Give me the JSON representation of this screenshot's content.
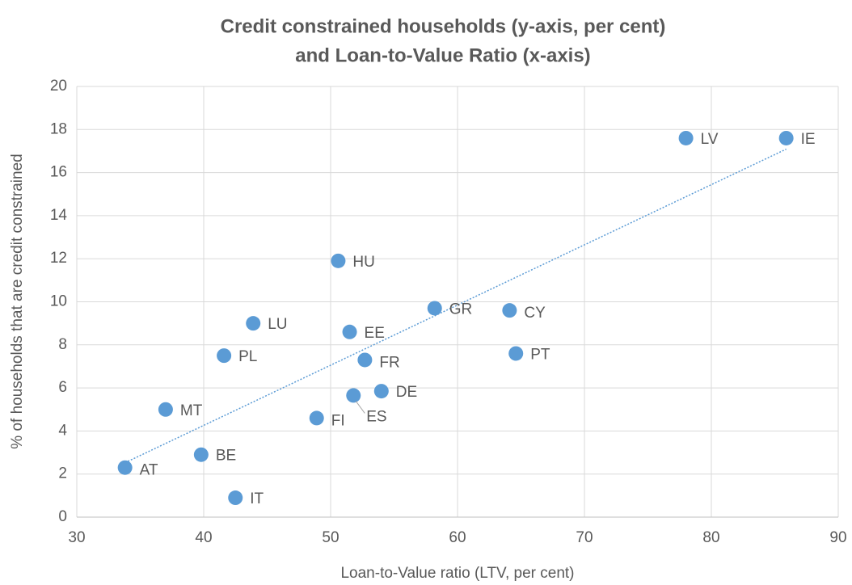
{
  "chart_data": {
    "type": "scatter",
    "title_lines": [
      "Credit constrained households (y-axis, per cent)",
      "and Loan-to-Value Ratio (x-axis)"
    ],
    "x_label": "Loan-to-Value ratio (LTV, per cent)",
    "y_label": "% of households that are credit constrained",
    "point_labels": [
      "LV",
      "IE",
      "HU",
      "GR",
      "CY",
      "LU",
      "EE",
      "PL",
      "PT",
      "FR",
      "DE",
      "ES",
      "MT",
      "FI",
      "BE",
      "AT",
      "IT"
    ],
    "x": [
      78.0,
      85.9,
      50.6,
      58.2,
      64.1,
      43.9,
      51.5,
      41.6,
      64.6,
      52.7,
      54.0,
      51.8,
      37.0,
      48.9,
      39.8,
      33.8,
      42.5
    ],
    "values": [
      17.6,
      17.6,
      11.9,
      9.7,
      9.6,
      9.0,
      8.6,
      7.5,
      7.6,
      7.3,
      5.85,
      5.65,
      5.0,
      4.6,
      2.9,
      2.3,
      0.9
    ],
    "color": "#5b9bd5",
    "trendline": "linear",
    "xlim": [
      30,
      90
    ],
    "xticks": [
      30,
      40,
      50,
      60,
      70,
      80,
      90
    ],
    "ylim": [
      0,
      20
    ],
    "yticks": [
      0,
      2,
      4,
      6,
      8,
      10,
      12,
      14,
      16,
      18,
      20
    ],
    "grid": true
  }
}
